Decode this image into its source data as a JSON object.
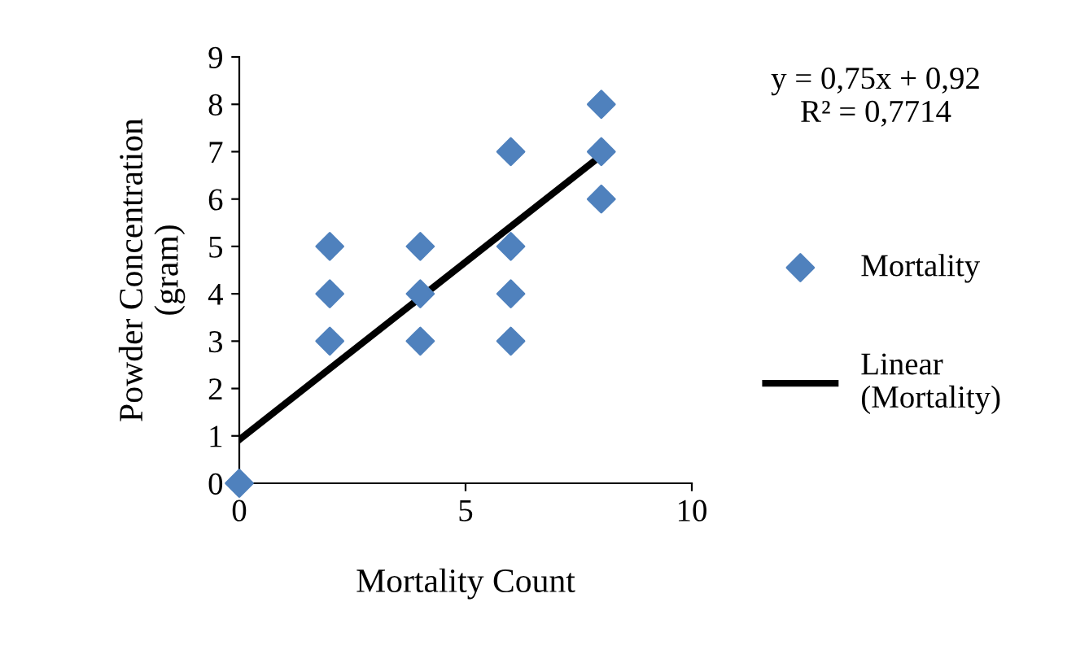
{
  "chart_data": {
    "type": "scatter",
    "xlabel": "Mortality Count",
    "ylabel": "Powder Concentration\n(gram)",
    "annotations": [
      "y = 0,75x + 0,92",
      "R² = 0,7714"
    ],
    "xlim": [
      0,
      10
    ],
    "xticks": [
      0,
      5,
      10
    ],
    "ylim": [
      0,
      9
    ],
    "yticks": [
      0,
      1,
      2,
      3,
      4,
      5,
      6,
      7,
      8,
      9
    ],
    "grid": false,
    "legend": "right",
    "series": [
      {
        "name": "Mortality",
        "marker": "diamond",
        "color": "#4f81bd",
        "x": [
          0,
          2,
          2,
          2,
          4,
          4,
          4,
          6,
          6,
          6,
          6,
          8,
          8,
          8
        ],
        "values": [
          0,
          3,
          4,
          5,
          3,
          4,
          5,
          3,
          4,
          5,
          7,
          6,
          7,
          8
        ]
      },
      {
        "name": "Linear\n(Mortality)",
        "type": "line",
        "marker": "none",
        "line_style": "solid",
        "color": "#000000",
        "x": [
          0,
          8
        ],
        "values": [
          0.92,
          6.92
        ]
      }
    ]
  }
}
